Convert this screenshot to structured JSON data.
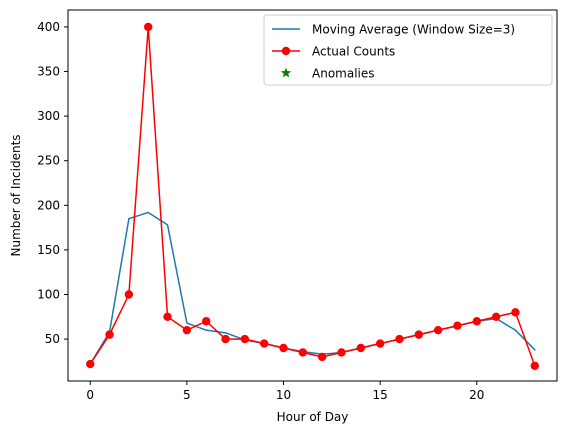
{
  "chart_data": {
    "type": "line",
    "title": "",
    "xlabel": "Hour of Day",
    "ylabel": "Number of Incidents",
    "xlim": [
      -1.15,
      24.15
    ],
    "ylim": [
      3,
      419
    ],
    "xticks": [
      0,
      5,
      10,
      15,
      20
    ],
    "yticks": [
      50,
      100,
      150,
      200,
      250,
      300,
      350,
      400
    ],
    "grid": false,
    "legend_position": "top-right",
    "x": [
      0,
      1,
      2,
      3,
      4,
      5,
      6,
      7,
      8,
      9,
      10,
      11,
      12,
      13,
      14,
      15,
      16,
      17,
      18,
      19,
      20,
      21,
      22,
      23
    ],
    "series": [
      {
        "name": "Moving Average (Window Size=3)",
        "kind": "line",
        "color": "#1f77b4",
        "values": [
          22,
          58,
          185,
          192,
          178,
          68,
          60,
          57,
          49,
          45,
          40,
          36,
          33,
          35,
          40,
          45,
          50,
          55,
          60,
          65,
          70,
          73,
          60,
          38
        ]
      },
      {
        "name": "Actual Counts",
        "kind": "line-marker",
        "color": "#ff0000",
        "values": [
          22,
          55,
          100,
          400,
          75,
          60,
          70,
          50,
          50,
          45,
          40,
          35,
          30,
          35,
          40,
          45,
          50,
          55,
          60,
          65,
          70,
          75,
          80,
          20
        ]
      },
      {
        "name": "Anomalies",
        "kind": "scatter-star",
        "color": "#008000",
        "values": []
      }
    ]
  }
}
